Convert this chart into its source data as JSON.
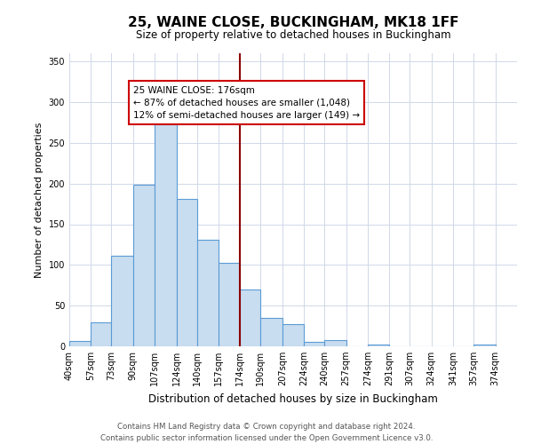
{
  "title": "25, WAINE CLOSE, BUCKINGHAM, MK18 1FF",
  "subtitle": "Size of property relative to detached houses in Buckingham",
  "xlabel": "Distribution of detached houses by size in Buckingham",
  "ylabel": "Number of detached properties",
  "bin_labels": [
    "40sqm",
    "57sqm",
    "73sqm",
    "90sqm",
    "107sqm",
    "124sqm",
    "140sqm",
    "157sqm",
    "174sqm",
    "190sqm",
    "207sqm",
    "224sqm",
    "240sqm",
    "257sqm",
    "274sqm",
    "291sqm",
    "307sqm",
    "324sqm",
    "341sqm",
    "357sqm",
    "374sqm"
  ],
  "bin_edges": [
    40,
    57,
    73,
    90,
    107,
    124,
    140,
    157,
    174,
    190,
    207,
    224,
    240,
    257,
    274,
    291,
    307,
    324,
    341,
    357,
    374
  ],
  "bar_heights": [
    7,
    29,
    111,
    199,
    293,
    181,
    131,
    103,
    70,
    35,
    27,
    5,
    8,
    0,
    2,
    0,
    0,
    0,
    0,
    2
  ],
  "bar_color": "#c8ddf0",
  "bar_edge_color": "#5b9bd5",
  "vline_x": 174,
  "vline_color": "#8b0000",
  "annotation_title": "25 WAINE CLOSE: 176sqm",
  "annotation_line1": "← 87% of detached houses are smaller (1,048)",
  "annotation_line2": "12% of semi-detached houses are larger (149) →",
  "annotation_box_color": "#ffffff",
  "annotation_box_edge": "#cc0000",
  "ylim": [
    0,
    360
  ],
  "yticks": [
    0,
    50,
    100,
    150,
    200,
    250,
    300,
    350
  ],
  "footer1": "Contains HM Land Registry data © Crown copyright and database right 2024.",
  "footer2": "Contains public sector information licensed under the Open Government Licence v3.0.",
  "background_color": "#ffffff",
  "grid_color": "#d0d8e8",
  "title_fontsize": 11,
  "subtitle_fontsize": 8.5,
  "xlabel_fontsize": 8.5,
  "ylabel_fontsize": 8,
  "tick_fontsize": 7,
  "annotation_fontsize": 7.5,
  "footer_fontsize": 6.2
}
